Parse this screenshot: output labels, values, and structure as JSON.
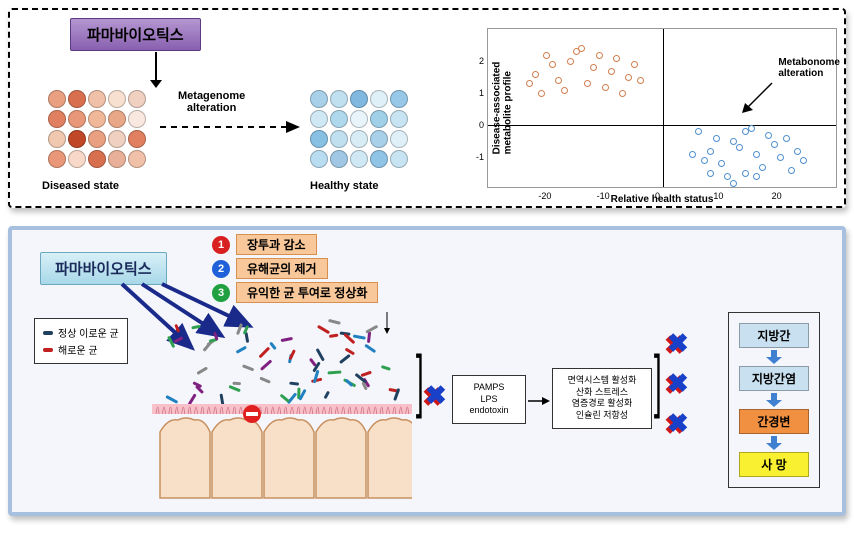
{
  "panel1": {
    "pharma_label": "파마바이오틱스",
    "pharma_bg_top": "#b596d1",
    "pharma_bg_bot": "#8960b0",
    "metagenome_label": "Metagenome\nalteration",
    "diseased_label": "Diseased state",
    "healthy_label": "Healthy state",
    "diseased_colors": [
      "#e8a080",
      "#d87050",
      "#f0c0a8",
      "#f8e0d0",
      "#f0d0c0",
      "#e08060",
      "#e89878",
      "#f0b898",
      "#e8a888",
      "#f8e8e0",
      "#f0c8b0",
      "#c04828",
      "#e8a080",
      "#f0d0c0",
      "#e08060",
      "#e89878",
      "#f8d8c8",
      "#d87050",
      "#e8b098",
      "#f0c0a8"
    ],
    "healthy_colors": [
      "#a8d0e8",
      "#c0e0f0",
      "#80b8e0",
      "#e0f0f8",
      "#98c8e8",
      "#d0e8f4",
      "#b0d8ec",
      "#e8f4fa",
      "#a0d0e8",
      "#c8e4f2",
      "#88c0e4",
      "#c0e0f0",
      "#d8ecf6",
      "#a8d0e8",
      "#e0f0f8",
      "#b8dcf0",
      "#a0c8e4",
      "#d0e8f4",
      "#90c4e6",
      "#c8e4f2"
    ]
  },
  "scatter": {
    "ylabel": "Disease-associated\nmetabolite profile",
    "xlabel": "Relative health status",
    "annot": "Metabonome\nalteration",
    "xlim": [
      -30,
      30
    ],
    "ylim": [
      -2,
      3
    ],
    "xtick_vals": [
      -20,
      -10,
      0,
      10,
      20
    ],
    "ytick_vals": [
      -1,
      0,
      1,
      2
    ],
    "orange_color": "#d08050",
    "blue_color": "#5090d0",
    "orange_pts": [
      [
        -22,
        1.6
      ],
      [
        -20,
        2.2
      ],
      [
        -18,
        1.4
      ],
      [
        -16,
        2.0
      ],
      [
        -14,
        2.4
      ],
      [
        -12,
        1.8
      ],
      [
        -10,
        1.2
      ],
      [
        -8,
        2.1
      ],
      [
        -6,
        1.5
      ],
      [
        -19,
        1.9
      ],
      [
        -17,
        1.1
      ],
      [
        -15,
        2.3
      ],
      [
        -13,
        1.3
      ],
      [
        -11,
        2.2
      ],
      [
        -9,
        1.7
      ],
      [
        -7,
        1.0
      ],
      [
        -21,
        1.0
      ],
      [
        -23,
        1.3
      ],
      [
        -5,
        1.9
      ],
      [
        -4,
        1.4
      ]
    ],
    "blue_pts": [
      [
        6,
        -0.2
      ],
      [
        8,
        -0.8
      ],
      [
        10,
        -1.2
      ],
      [
        12,
        -0.5
      ],
      [
        14,
        -1.5
      ],
      [
        16,
        -0.9
      ],
      [
        18,
        -0.3
      ],
      [
        7,
        -1.1
      ],
      [
        9,
        -0.4
      ],
      [
        11,
        -1.6
      ],
      [
        13,
        -0.7
      ],
      [
        15,
        -0.1
      ],
      [
        17,
        -1.3
      ],
      [
        19,
        -0.6
      ],
      [
        5,
        -0.9
      ],
      [
        20,
        -1.0
      ],
      [
        21,
        -0.4
      ],
      [
        22,
        -1.4
      ],
      [
        23,
        -0.8
      ],
      [
        24,
        -1.1
      ],
      [
        14,
        -0.2
      ],
      [
        8,
        -1.5
      ],
      [
        12,
        -1.8
      ],
      [
        16,
        -1.6
      ]
    ]
  },
  "panel2": {
    "pharma_label": "파마바이오틱스",
    "bullets": [
      {
        "num": "1",
        "color": "#d82020",
        "text": "장투과 감소"
      },
      {
        "num": "2",
        "color": "#2060d8",
        "text": "유해균의 제거"
      },
      {
        "num": "3",
        "color": "#20a040",
        "text": "유익한 균 투여로 정상화"
      }
    ],
    "legend": {
      "good": "정상 이로운 균",
      "good_color": "#204060",
      "bad": "해로운 균",
      "bad_color": "#c02020"
    },
    "box1": "PAMPS\nLPS\nendotoxin",
    "box2": "면역시스템 활성화\n산화 스트레스\n염증경로 활성화\n인슐린 저항성",
    "outcomes": [
      {
        "text": "지방간",
        "bg": "#c8e0f0"
      },
      {
        "text": "지방간염",
        "bg": "#c8e0f0"
      },
      {
        "text": "간경변",
        "bg": "#f09040"
      },
      {
        "text": "사  망",
        "bg": "#f8f030"
      }
    ],
    "x_color_a": "#d01818",
    "x_color_b": "#1840c8"
  }
}
